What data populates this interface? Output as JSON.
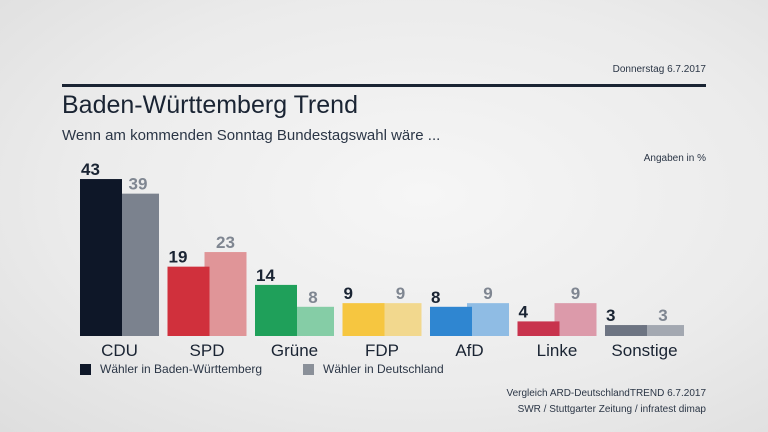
{
  "date": "Donnerstag 6.7.2017",
  "unit_label": "Angaben in %",
  "legend": [
    {
      "label": "Wähler in Baden-Württemberg",
      "color": "#0e1728"
    },
    {
      "label": "Wähler in Deutschland",
      "color": "#8a9099"
    }
  ],
  "source": {
    "line1": "Vergleich ARD-DeutschlandTREND 6.7.2017",
    "line2": "SWR / Stuttgarter Zeitung / infratest dimap"
  },
  "chart_data": {
    "type": "bar",
    "title": "Baden-Württemberg Trend",
    "subtitle": "Wenn am kommenden Sonntag Bundestagswahl wäre ...",
    "categories": [
      "CDU",
      "SPD",
      "Grüne",
      "FDP",
      "AfD",
      "Linke",
      "Sonstige"
    ],
    "series": [
      {
        "name": "Wähler in Baden-Württemberg",
        "values": [
          43,
          19,
          14,
          9,
          8,
          4,
          3
        ]
      },
      {
        "name": "Wähler in Deutschland",
        "values": [
          39,
          23,
          8,
          9,
          9,
          9,
          3
        ]
      }
    ],
    "colors": {
      "primary": [
        "#0e1728",
        "#d0303c",
        "#1fa05a",
        "#f6c640",
        "#2f86d1",
        "#c8334d",
        "#6d7482"
      ],
      "secondary": [
        "#7b828e",
        "#e09598",
        "#85cda6",
        "#f2d88e",
        "#8fbce4",
        "#dc9aaa",
        "#a3a8b1"
      ]
    },
    "value_label_colors": {
      "primary": "#1a2433",
      "secondary": "#7f8691"
    },
    "ylim": [
      0,
      45
    ],
    "grid": false,
    "legend_position": "bottom-left"
  }
}
